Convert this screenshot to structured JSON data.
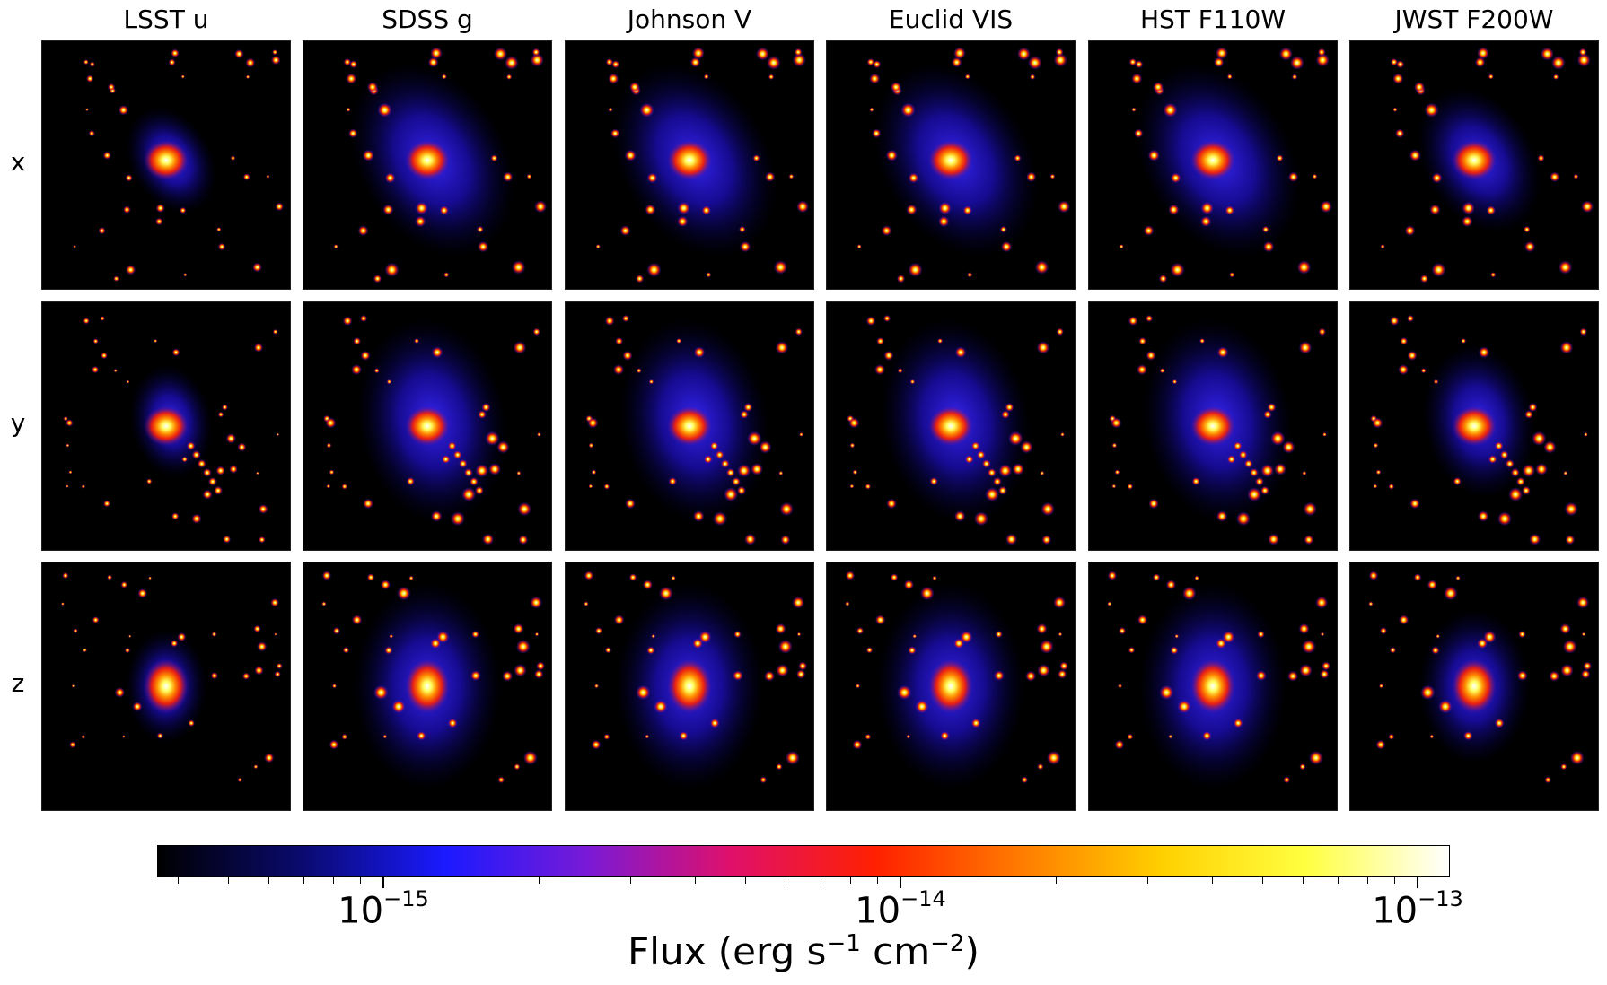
{
  "columns": [
    "LSST u",
    "SDSS g",
    "Johnson V",
    "Euclid VIS",
    "HST F110W",
    "JWST F200W"
  ],
  "rows": [
    "x",
    "y",
    "z"
  ],
  "colorbar": {
    "label_prefix": "Flux (erg s",
    "label_exp1": "−1",
    "label_mid": " cm",
    "label_exp2": "−2",
    "label_suffix": ")",
    "scale": "log",
    "colormap": "gnuplot2",
    "ticks": [
      {
        "base": "10",
        "exp": "−15"
      },
      {
        "base": "10",
        "exp": "−14"
      },
      {
        "base": "10",
        "exp": "−13"
      }
    ],
    "colors": [
      "#000000",
      "#0a0a6e",
      "#1a1aff",
      "#7a1ad6",
      "#e0106a",
      "#ff2000",
      "#ff7a00",
      "#ffd000",
      "#ffff40",
      "#ffffff"
    ]
  }
}
